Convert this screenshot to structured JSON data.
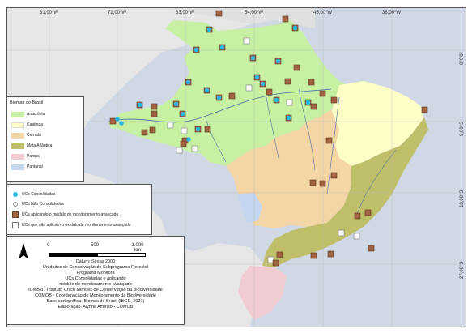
{
  "map": {
    "top_ticks": [
      "81,00°W",
      "72,00°W",
      "63,00°W",
      "54,00°W",
      "45,00°W",
      "36,00°W"
    ],
    "right_ticks": [
      "0°0'0\"",
      "9,00°S",
      "18,00°S",
      "27,00°S"
    ]
  },
  "legend_biomes": {
    "title": "Biomas do Brasil",
    "items": [
      {
        "label": "Amazônia",
        "color": "#c7f0a3"
      },
      {
        "label": "Caatinga",
        "color": "#fdfdc8"
      },
      {
        "label": "Cerrado",
        "color": "#f4d5a6"
      },
      {
        "label": "Mata Atlântica",
        "color": "#bfbf6a"
      },
      {
        "label": "Pampa",
        "color": "#f0cbd2"
      },
      {
        "label": "Pantanal",
        "color": "#c4d6ef"
      }
    ]
  },
  "legend_ucs": {
    "items": [
      {
        "label": "UCs Consolidadas",
        "symbol": "cyan-dot",
        "color": "#29b6e6"
      },
      {
        "label": "UCs Não Consolidadas",
        "symbol": "white-dot",
        "color": "#ffffff"
      },
      {
        "label": "UCs aplicando o módulo de monitoramento avançado",
        "symbol": "brown-square",
        "color": "#a0623f"
      },
      {
        "label": "UCs que não aplicam o módulo de monitoramento avançado",
        "symbol": "white-square",
        "color": "#ffffff"
      }
    ]
  },
  "scale": {
    "labels": [
      "0",
      "500",
      "1.000 km"
    ]
  },
  "info": {
    "lines": [
      "Datum: Sirgas 2000",
      "Unidades de Conservação do Subprograma Florestal",
      "Programa Monitora",
      "UCs Consolidadas e aplicando",
      "módulo de monitoramento avançado",
      "ICMBio - Instituto Chico Mendes de Conservação da Biodiversidade",
      "COMOB - Coordenação de Monitoramento da Biodiversidade",
      "Base cartográfica: Biomas do Brasil (IBGE, 2021)",
      "Elaboração: Alynne Affonso - COMOB"
    ]
  }
}
